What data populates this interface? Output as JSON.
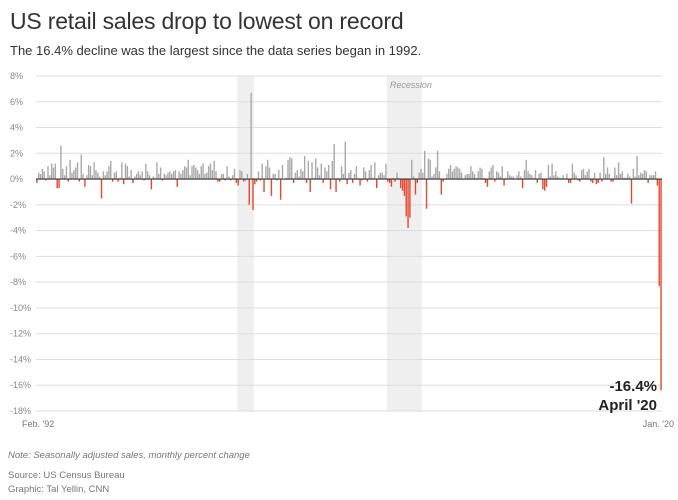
{
  "title": "US retail sales drop to lowest on record",
  "subtitle": "The 16.4% decline was the largest since the data series began in 1992.",
  "note": "Note: Seasonally adjusted sales, monthly percent change",
  "source": "Source: US Census Bureau",
  "credit": "Graphic: Tal Yellin, CNN",
  "colors": {
    "positive": "#a9a9a9",
    "negative": "#e8472d",
    "recession": "#efefef",
    "zero_line": "#333333",
    "grid": "#dddddd"
  },
  "chart_data": {
    "type": "bar",
    "ylim": [
      -18,
      8
    ],
    "yticks": [
      8,
      6,
      4,
      2,
      0,
      -2,
      -4,
      -6,
      -8,
      -10,
      -12,
      -14,
      -16,
      -18
    ],
    "ytick_labels": [
      "8%",
      "6%",
      "4%",
      "2%",
      "0%",
      "-2%",
      "-4%",
      "-6%",
      "-8%",
      "-10%",
      "-12%",
      "-14%",
      "-16%",
      "-18%"
    ],
    "grid": true,
    "x_start": "1992-02",
    "x_end": "2020-04",
    "xtick_labels": [
      "Feb. '92",
      "Jan. '20"
    ],
    "recession_label": "Recession",
    "recessions": [
      [
        "2001-03",
        "2001-11"
      ],
      [
        "2007-12",
        "2009-06"
      ]
    ],
    "annotation": {
      "value": "-16.4%",
      "label": "April '20"
    },
    "values": [
      -0.3,
      0.5,
      0.4,
      0.8,
      0.6,
      -0.1,
      1.0,
      0.3,
      1.2,
      0.9,
      1.2,
      -0.7,
      -0.7,
      2.6,
      0.8,
      0.3,
      1.0,
      -0.2,
      1.5,
      0.5,
      0.7,
      0.9,
      1.3,
      -0.2,
      1.9,
      0.4,
      -0.6,
      0.3,
      1.1,
      1.0,
      0.3,
      1.3,
      0.7,
      0.5,
      0.2,
      -1.5,
      0.6,
      0.3,
      0.6,
      1.0,
      1.4,
      -0.2,
      0.5,
      0.6,
      -0.2,
      0.1,
      1.3,
      -0.4,
      1.2,
      1.0,
      0.2,
      0.7,
      -0.3,
      0.2,
      0.4,
      0.6,
      0.3,
      0.6,
      -0.1,
      1.2,
      0.6,
      0.3,
      -0.8,
      0.2,
      0.1,
      1.3,
      0.4,
      0.9,
      -0.1,
      0.4,
      0.3,
      0.5,
      0.6,
      0.4,
      0.6,
      0.7,
      -0.6,
      0.6,
      0.4,
      0.7,
      1.0,
      0.9,
      1.5,
      0.3,
      1.0,
      1.1,
      0.9,
      0.7,
      0.4,
      1.0,
      1.2,
      0.4,
      0.5,
      1.0,
      1.2,
      0.7,
      1.4,
      0.6,
      -0.2,
      -0.2,
      0.4,
      0.4,
      -0.1,
      1.0,
      0.2,
      -0.1,
      0.3,
      0.8,
      -0.3,
      -0.5,
      0.7,
      0.6,
      -0.2,
      -0.1,
      0.4,
      -2.0,
      6.7,
      -2.4,
      -0.4,
      -0.2,
      0.6,
      -0.1,
      1.2,
      -1.0,
      1.0,
      1.5,
      0.9,
      -1.3,
      0.4,
      0.4,
      -0.1,
      0.7,
      -1.6,
      1.1,
      0.0,
      0.1,
      1.5,
      1.7,
      1.6,
      -0.3,
      0.5,
      0.7,
      0.2,
      0.8,
      0.6,
      1.8,
      -0.3,
      1.4,
      -1.0,
      1.3,
      0.1,
      1.6,
      0.9,
      0.3,
      1.2,
      -0.3,
      0.9,
      0.6,
      1.1,
      -0.8,
      1.4,
      2.7,
      -1.0,
      0.1,
      -0.2,
      1.0,
      0.4,
      2.9,
      -0.4,
      0.5,
      0.7,
      -0.3,
      0.4,
      1.0,
      0.1,
      -0.5,
      -0.1,
      0.9,
      0.6,
      -0.2,
      0.7,
      1.1,
      0.1,
      1.3,
      -0.7,
      0.3,
      0.5,
      0.5,
      0.3,
      1.2,
      -0.2,
      -0.3,
      -0.6,
      0.1,
      -0.2,
      0.5,
      0.1,
      -0.7,
      -0.9,
      -1.3,
      -2.9,
      -3.8,
      -3.0,
      1.5,
      0.2,
      -1.2,
      -0.3,
      0.5,
      0.8,
      0.5,
      2.2,
      -2.3,
      1.6,
      1.5,
      0.2,
      0.4,
      0.9,
      2.2,
      0.6,
      -1.2,
      -0.2,
      0.0,
      0.4,
      0.8,
      1.1,
      0.6,
      0.8,
      1.0,
      0.9,
      0.8,
      0.5,
      0.0,
      0.3,
      0.4,
      0.4,
      1.0,
      0.6,
      0.4,
      0.1,
      0.6,
      0.9,
      0.8,
      0.1,
      -0.3,
      -0.6,
      0.6,
      0.9,
      1.1,
      -0.2,
      0.6,
      0.5,
      0.2,
      1.0,
      -0.5,
      0.1,
      0.6,
      0.3,
      0.2,
      0.2,
      0.0,
      0.3,
      0.6,
      0.2,
      -0.7,
      0.7,
      1.5,
      0.6,
      0.4,
      0.3,
      0.1,
      0.7,
      -0.3,
      0.4,
      0.5,
      -0.8,
      -0.9,
      -0.6,
      1.1,
      0.2,
      1.2,
      0.3,
      0.6,
      0.2,
      0.1,
      0.1,
      0.3,
      0.0,
      0.4,
      -0.3,
      -0.3,
      1.2,
      0.5,
      0.3,
      -0.1,
      -0.2,
      0.7,
      0.8,
      0.3,
      0.6,
      0.8,
      -0.2,
      -0.3,
      0.5,
      -0.4,
      -0.3,
      0.5,
      -0.2,
      1.7,
      0.4,
      0.9,
      0.4,
      -0.2,
      -0.2,
      0.9,
      0.3,
      1.3,
      0.4,
      0.6,
      0.1,
      0.1,
      0.4,
      0.2,
      -1.9,
      0.8,
      0.2,
      1.8,
      0.3,
      0.5,
      0.4,
      0.7,
      0.6,
      -0.3,
      0.3,
      0.3,
      0.3,
      0.6,
      -0.5,
      -8.3,
      -16.4
    ]
  }
}
